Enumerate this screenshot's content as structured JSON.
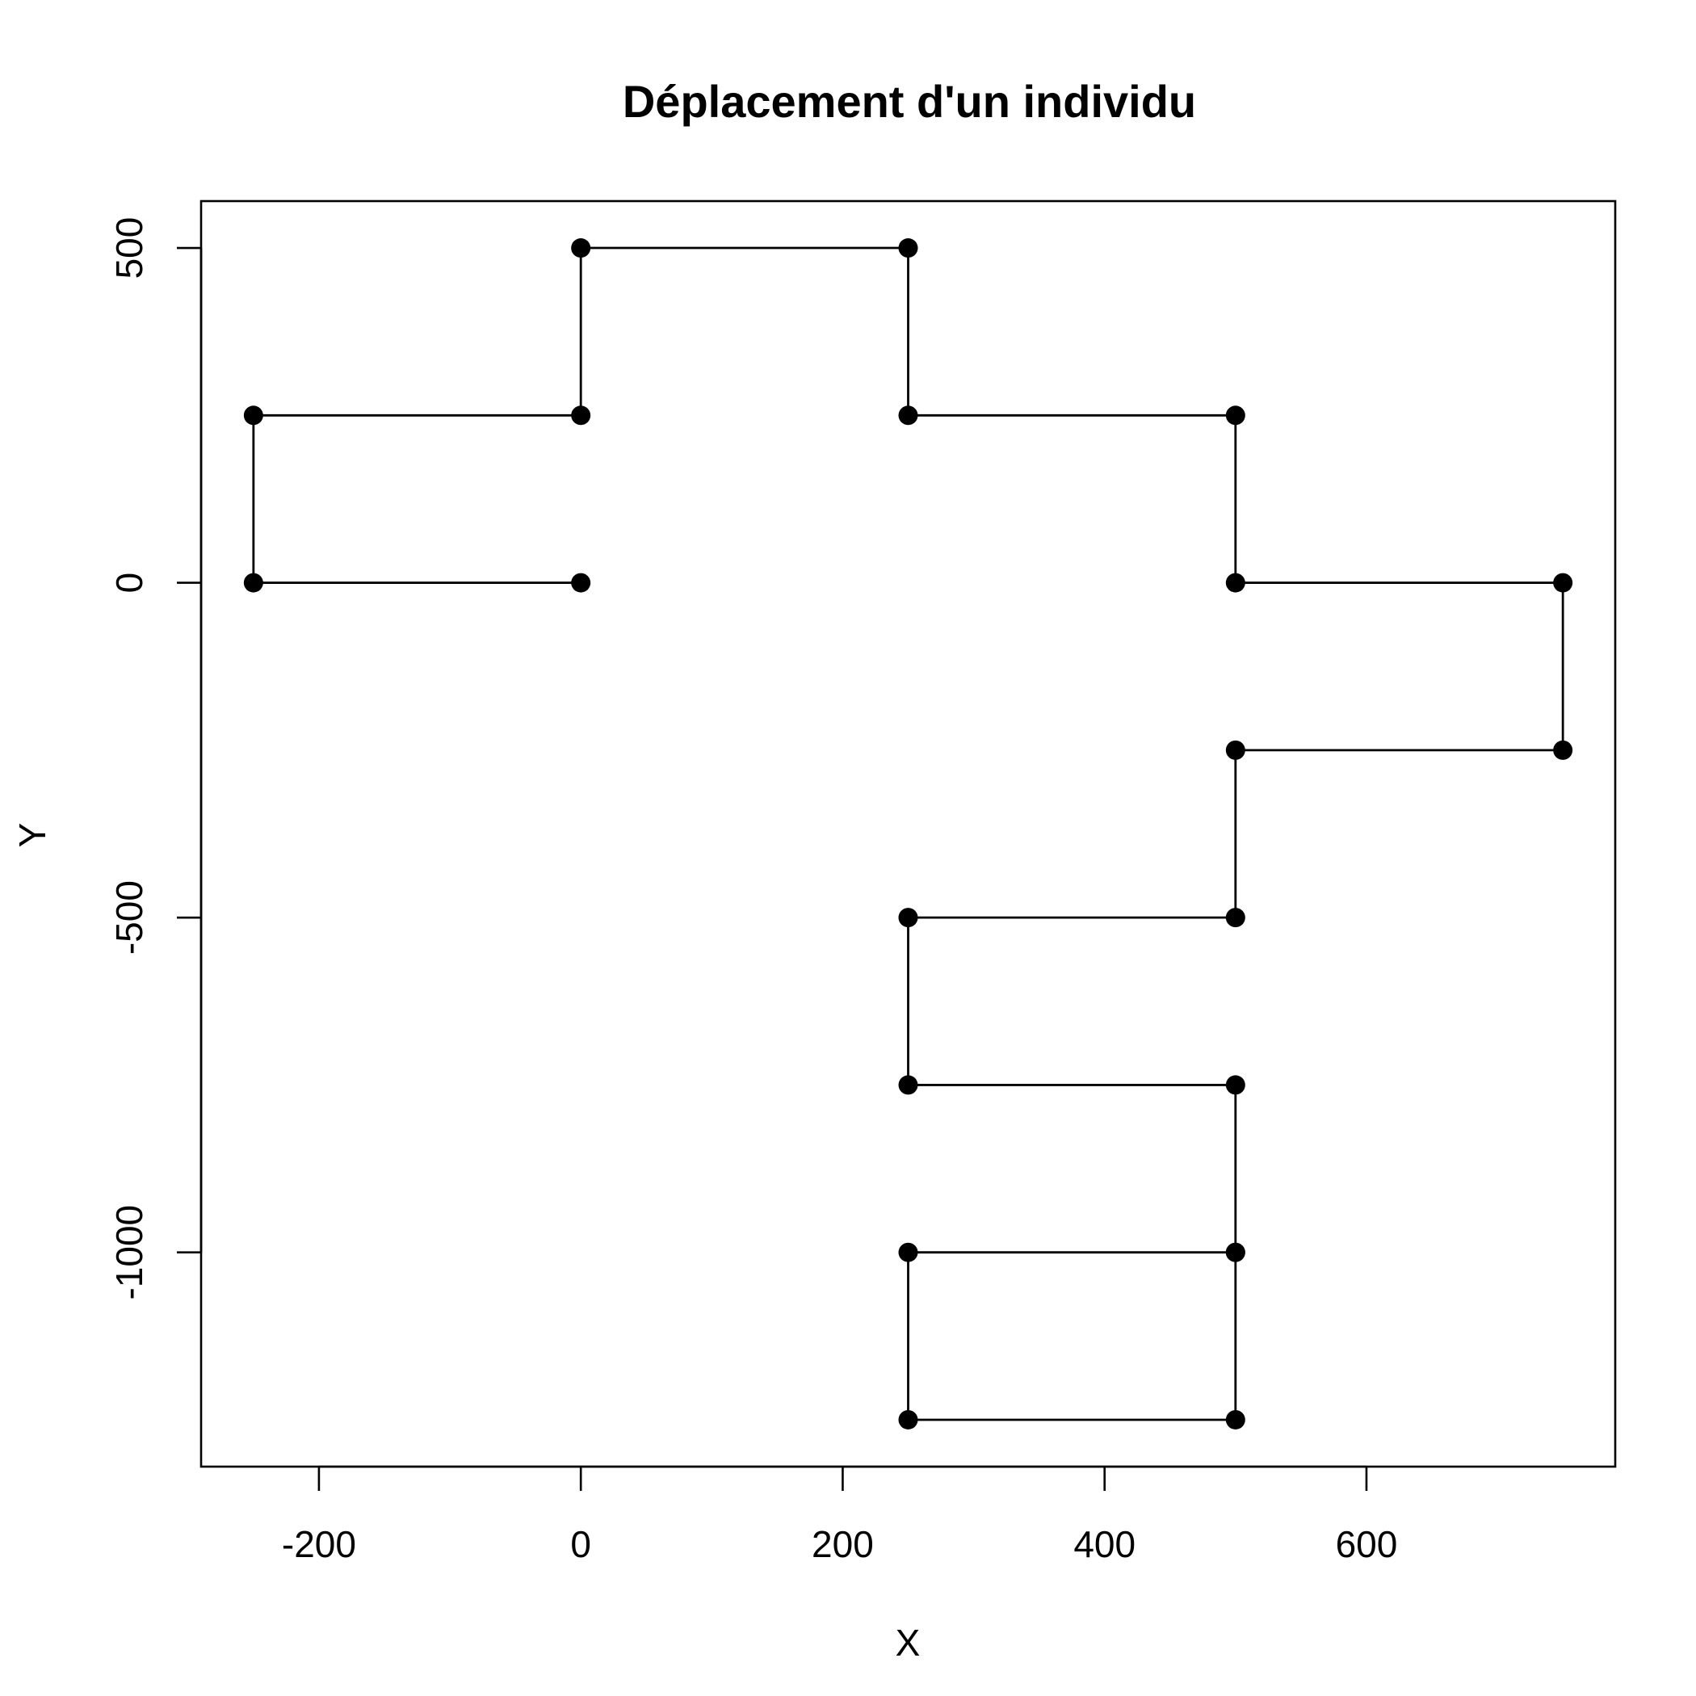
{
  "chart_data": {
    "type": "line",
    "title": "Déplacement d'un individu",
    "xlabel": "X",
    "ylabel": "Y",
    "xlim": [
      -290,
      790
    ],
    "ylim": [
      -1320,
      570
    ],
    "grid": false,
    "legend": "none",
    "colors": {
      "line": "#000000",
      "points": "#000000",
      "frame": "#000000"
    },
    "x_ticks": [
      {
        "value": -200,
        "label": "-200"
      },
      {
        "value": 0,
        "label": "0"
      },
      {
        "value": 200,
        "label": "200"
      },
      {
        "value": 400,
        "label": "400"
      },
      {
        "value": 600,
        "label": "600"
      }
    ],
    "y_ticks": [
      {
        "value": -1000,
        "label": "-1000"
      },
      {
        "value": -500,
        "label": "-500"
      },
      {
        "value": 0,
        "label": "0"
      },
      {
        "value": 500,
        "label": "500"
      }
    ],
    "series": [
      {
        "x": [
          0,
          -250,
          -250,
          0,
          0,
          250,
          250,
          500,
          500,
          750,
          750,
          500,
          500,
          250,
          250,
          500,
          500,
          250,
          250,
          500,
          500
        ],
        "y": [
          0,
          0,
          250,
          250,
          500,
          500,
          250,
          250,
          0,
          0,
          -250,
          -250,
          -500,
          -500,
          -750,
          -750,
          -1000,
          -1000,
          -1250,
          -1250,
          -1000
        ]
      }
    ]
  }
}
